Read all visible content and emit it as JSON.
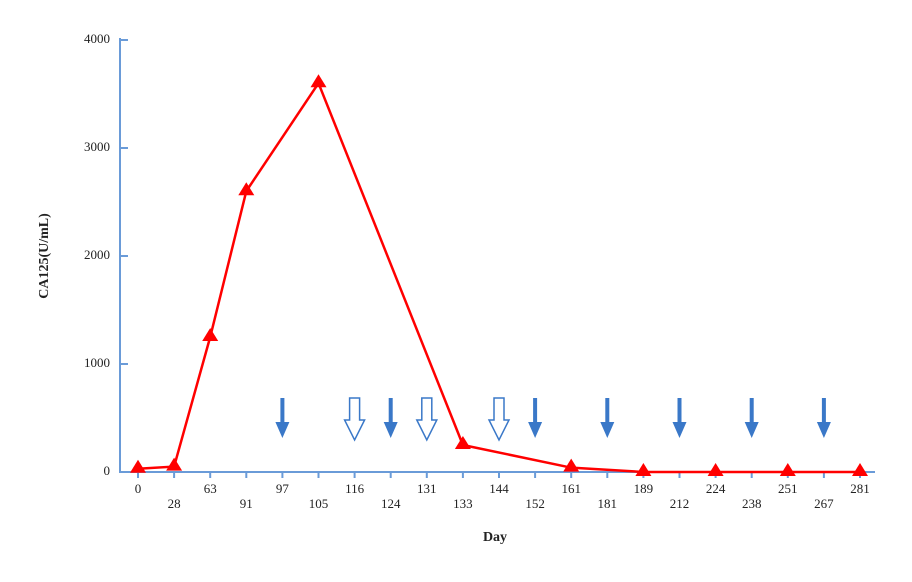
{
  "chart_data": {
    "type": "line",
    "x_label": "Day",
    "y_label": "CA125(U/mL)",
    "categories": [
      "0",
      "28",
      "63",
      "91",
      "97",
      "105",
      "116",
      "124",
      "131",
      "133",
      "144",
      "152",
      "161",
      "181",
      "189",
      "212",
      "224",
      "238",
      "251",
      "267",
      "281"
    ],
    "series": [
      {
        "color": "#ff0000",
        "x": [
          "0",
          "28",
          "63",
          "91",
          "105",
          "133",
          "161",
          "189",
          "224",
          "251",
          "281"
        ],
        "values": [
          30,
          50,
          1250,
          2600,
          3600,
          250,
          40,
          0,
          0,
          0,
          0
        ]
      }
    ],
    "solid_arrows": [
      "97",
      "124",
      "152",
      "181",
      "212",
      "238",
      "267"
    ],
    "hollow_arrows": [
      "116",
      "131",
      "144"
    ],
    "arrow_color": "#3a78c8",
    "ylim": [
      0,
      4000
    ],
    "yticks": [
      0,
      1000,
      2000,
      3000,
      4000
    ]
  }
}
